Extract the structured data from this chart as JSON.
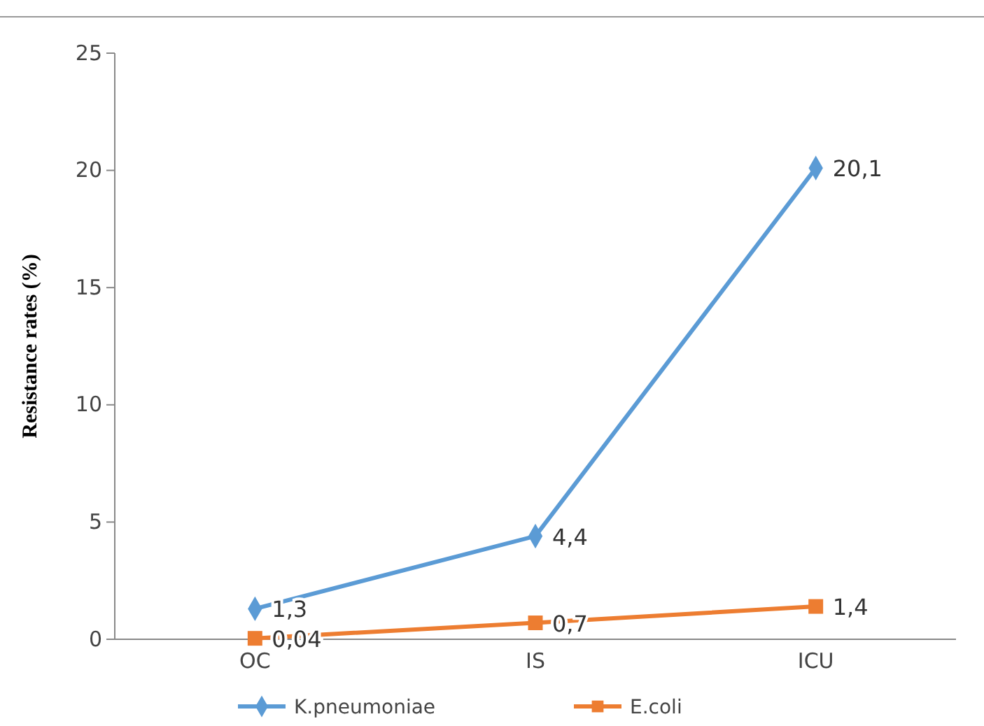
{
  "chart_data": {
    "type": "line",
    "ylabel": "Resistance rates (%)",
    "categories": [
      "OC",
      "IS",
      "ICU"
    ],
    "series": [
      {
        "name": "K.pneumoniae",
        "color": "#5b9bd5",
        "marker": "diamond",
        "values": [
          1.3,
          4.4,
          20.1
        ],
        "value_labels": [
          "1,3",
          "4,4",
          "20,1"
        ]
      },
      {
        "name": "E.coli",
        "color": "#ed7d31",
        "marker": "square",
        "values": [
          0.04,
          0.7,
          1.4
        ],
        "value_labels": [
          "0,04",
          "0,7",
          "1,4"
        ]
      }
    ],
    "ylim": [
      0,
      25
    ],
    "yticks": [
      0,
      5,
      10,
      15,
      20,
      25
    ],
    "grid": false,
    "legend": "bottom"
  }
}
